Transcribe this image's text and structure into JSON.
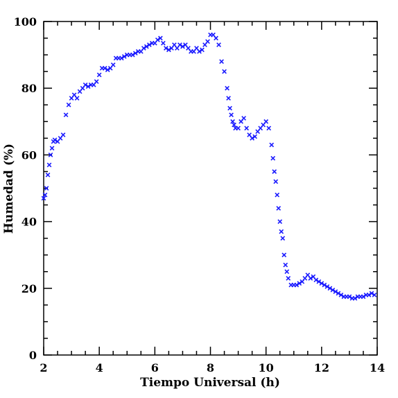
{
  "chart_data": {
    "type": "scatter",
    "title": "",
    "xlabel": "Tiempo Universal (h)",
    "ylabel": "Humedad (%)",
    "xlim": [
      2,
      14
    ],
    "ylim": [
      0,
      100
    ],
    "xticks": [
      2,
      4,
      6,
      8,
      10,
      12,
      14
    ],
    "yticks": [
      0,
      20,
      40,
      60,
      80,
      100
    ],
    "xtick_labels": [
      "2",
      "4",
      "6",
      "8",
      "10",
      "12",
      "14"
    ],
    "ytick_labels": [
      "0",
      "20",
      "40",
      "60",
      "80",
      "100"
    ],
    "grid": false,
    "marker": "x",
    "marker_color": "#1a1aff",
    "series": [
      {
        "x": [
          2.0,
          2.05,
          2.1,
          2.15,
          2.2,
          2.25,
          2.3,
          2.35,
          2.4,
          2.5,
          2.6,
          2.7,
          2.8,
          2.9,
          3.0,
          3.1,
          3.2,
          3.3,
          3.4,
          3.5,
          3.6,
          3.7,
          3.8,
          3.9,
          4.0,
          4.1,
          4.2,
          4.3,
          4.4,
          4.5,
          4.6,
          4.7,
          4.8,
          4.9,
          5.0,
          5.1,
          5.2,
          5.3,
          5.4,
          5.5,
          5.6,
          5.7,
          5.8,
          5.9,
          6.0,
          6.1,
          6.2,
          6.3,
          6.4,
          6.5,
          6.6,
          6.7,
          6.8,
          6.9,
          7.0,
          7.1,
          7.2,
          7.3,
          7.4,
          7.5,
          7.6,
          7.7,
          7.8,
          7.9,
          8.0,
          8.1,
          8.2,
          8.3,
          8.4,
          8.5,
          8.6,
          8.65,
          8.7,
          8.75,
          8.8,
          8.85,
          8.9,
          9.0,
          9.1,
          9.2,
          9.3,
          9.4,
          9.5,
          9.6,
          9.7,
          9.8,
          9.9,
          10.0,
          10.1,
          10.2,
          10.25,
          10.3,
          10.35,
          10.4,
          10.45,
          10.5,
          10.55,
          10.6,
          10.65,
          10.7,
          10.75,
          10.8,
          10.9,
          11.0,
          11.1,
          11.2,
          11.3,
          11.4,
          11.5,
          11.6,
          11.7,
          11.8,
          11.9,
          12.0,
          12.1,
          12.2,
          12.3,
          12.4,
          12.5,
          12.6,
          12.7,
          12.8,
          12.9,
          13.0,
          13.1,
          13.2,
          13.3,
          13.4,
          13.5,
          13.6,
          13.7,
          13.8,
          13.9
        ],
        "y": [
          47,
          48,
          50,
          54,
          57,
          60,
          62,
          64,
          64.5,
          64,
          65,
          66,
          72,
          75,
          77,
          78,
          77,
          79,
          80,
          81,
          80.5,
          81,
          81,
          82,
          84,
          86,
          86,
          85.5,
          86,
          87,
          89,
          89,
          89,
          89.5,
          90,
          90,
          90,
          90.5,
          91,
          91,
          92,
          92.5,
          93,
          93.5,
          93.5,
          94.5,
          95,
          93.5,
          92,
          91.5,
          92,
          93,
          92,
          93,
          92.5,
          93,
          92,
          91,
          91,
          92,
          91,
          91.5,
          93,
          94,
          96,
          96,
          95,
          93,
          88,
          85,
          80,
          77,
          74,
          72,
          70,
          69,
          68,
          68,
          70,
          71,
          68,
          66,
          65,
          65.5,
          67,
          68,
          69,
          70,
          68,
          63,
          59,
          55,
          52,
          48,
          44,
          40,
          37,
          35,
          30,
          27,
          25,
          23,
          21,
          21,
          21,
          21.5,
          22,
          23,
          24,
          23,
          23.5,
          22.5,
          22,
          21.5,
          21,
          20.5,
          20,
          19.5,
          19,
          18.5,
          18,
          17.5,
          17.5,
          17.5,
          17,
          17,
          17.5,
          17.5,
          17.5,
          18,
          18,
          18.5,
          18
        ]
      }
    ]
  }
}
